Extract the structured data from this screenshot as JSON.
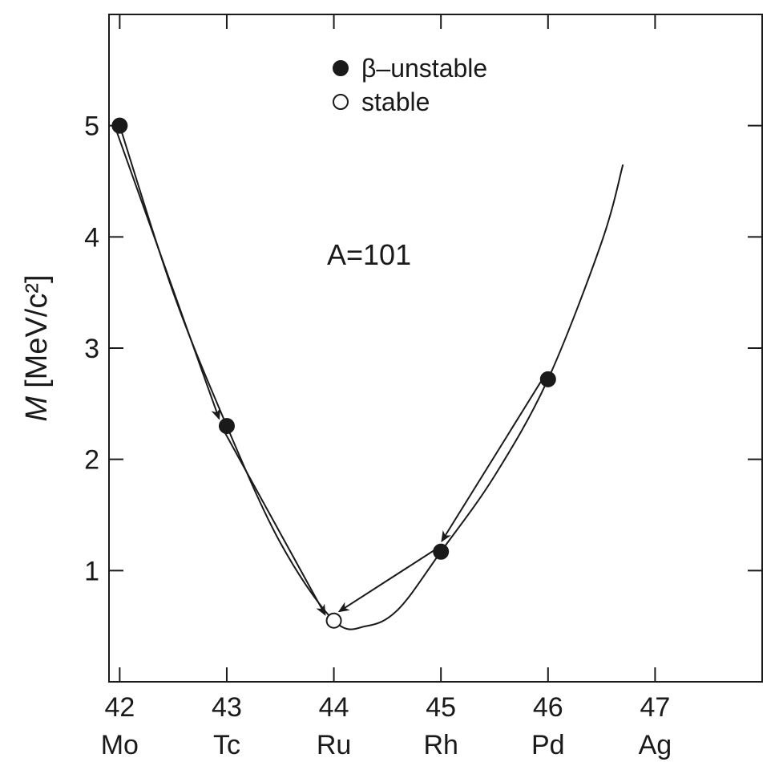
{
  "chart_data": {
    "type": "scatter",
    "ylabel": {
      "symbol": "M",
      "unit": "[MeV/c²]"
    },
    "annotation": "A=101",
    "xlim": [
      41.9,
      48
    ],
    "ylim": [
      0,
      6
    ],
    "x_ticks": [
      42,
      43,
      44,
      45,
      46,
      47
    ],
    "element_labels": [
      "Mo",
      "Tc",
      "Ru",
      "Rh",
      "Pd",
      "Ag"
    ],
    "y_ticks": [
      1,
      2,
      3,
      4,
      5
    ],
    "legend": {
      "position": "top-center",
      "entries": [
        {
          "label": "β–unstable",
          "marker": "filled-circle"
        },
        {
          "label": "stable",
          "marker": "open-circle"
        }
      ]
    },
    "points": [
      {
        "x": 42,
        "y": 5.0,
        "element": "Mo",
        "stable": false
      },
      {
        "x": 43,
        "y": 2.3,
        "element": "Tc",
        "stable": false
      },
      {
        "x": 44,
        "y": 0.55,
        "element": "Ru",
        "stable": true
      },
      {
        "x": 45,
        "y": 1.17,
        "element": "Rh",
        "stable": false
      },
      {
        "x": 46,
        "y": 2.72,
        "element": "Pd",
        "stable": false
      }
    ],
    "parabola": {
      "x": [
        42,
        42.5,
        43,
        43.5,
        44,
        44.3,
        44.6,
        45,
        45.5,
        46,
        46.5,
        46.7
      ],
      "y": [
        5.0,
        3.5,
        2.3,
        1.25,
        0.55,
        0.5,
        0.65,
        1.17,
        1.85,
        2.72,
        3.95,
        4.65
      ]
    },
    "decay_arrows": [
      {
        "from_element": "Mo",
        "to_element": "Tc"
      },
      {
        "from_element": "Tc",
        "to_element": "Ru"
      },
      {
        "from_element": "Pd",
        "to_element": "Rh"
      },
      {
        "from_element": "Rh",
        "to_element": "Ru"
      }
    ],
    "colors": {
      "ink": "#1a1a1a",
      "background": "#ffffff"
    },
    "grid": false
  }
}
